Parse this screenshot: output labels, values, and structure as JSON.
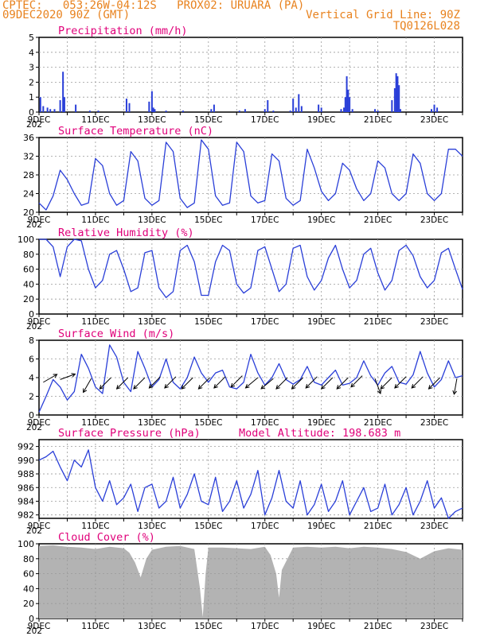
{
  "header": {
    "line1_left": "CPTEC:   053:26W-04:12S   PROX02: URUARA (PA)",
    "line2_left": "09DEC2020 90Z (GMT)",
    "line2_right": "Vertical Grid Line: 90Z",
    "line3_right": "TQ0126L028"
  },
  "colors": {
    "header": "#e8821e",
    "title": "#e0007a",
    "series": "#2a3fd8",
    "cloud": "#b3b3b3",
    "arrow": "#000000"
  },
  "x_axis": {
    "labels": [
      "9DEC",
      "11DEC",
      "13DEC",
      "15DEC",
      "17DEC",
      "19DEC",
      "21DEC",
      "23DEC"
    ],
    "label_days": [
      0,
      2,
      4,
      6,
      8,
      10,
      12,
      14
    ],
    "range_days": [
      0,
      15
    ],
    "year_stub": "202"
  },
  "chart_data": [
    {
      "id": "precip",
      "type": "bar",
      "title": "Precipitation (mm/h)",
      "ylim": [
        0,
        5
      ],
      "yticks": [
        0,
        1,
        2,
        3,
        4,
        5
      ],
      "x_days": [
        0.05,
        0.15,
        0.3,
        0.4,
        0.55,
        0.75,
        0.85,
        0.9,
        1.3,
        1.8,
        2.1,
        3.1,
        3.2,
        3.9,
        4.0,
        4.05,
        4.1,
        4.5,
        5.1,
        6.1,
        6.2,
        7.1,
        7.3,
        8.0,
        8.1,
        8.3,
        8.9,
        9.0,
        9.1,
        9.2,
        9.3,
        9.9,
        10.0,
        10.7,
        10.8,
        10.85,
        10.9,
        10.95,
        11.0,
        11.1,
        11.9,
        12.0,
        12.5,
        12.6,
        12.65,
        12.7,
        12.75,
        12.8,
        13.9,
        14.0,
        14.1
      ],
      "values": [
        1.0,
        0.4,
        0.3,
        0.2,
        0.2,
        0.8,
        2.7,
        1.0,
        0.5,
        0.1,
        0.1,
        0.9,
        0.6,
        0.7,
        1.4,
        0.3,
        0.2,
        0.1,
        0.1,
        0.2,
        0.5,
        0.1,
        0.2,
        0.2,
        0.8,
        0.1,
        0.1,
        0.9,
        0.3,
        1.2,
        0.4,
        0.5,
        0.3,
        0.2,
        0.3,
        1.0,
        2.4,
        1.5,
        1.0,
        0.2,
        0.2,
        0.1,
        0.8,
        1.6,
        2.6,
        2.4,
        1.8,
        0.2,
        0.2,
        0.5,
        0.3
      ]
    },
    {
      "id": "temp",
      "type": "line",
      "title": "Surface Temperature (nC)",
      "ylim": [
        20,
        36
      ],
      "yticks": [
        20,
        24,
        28,
        32,
        36
      ],
      "x": [
        0,
        0.25,
        0.5,
        0.75,
        1,
        1.25,
        1.5,
        1.75,
        2,
        2.25,
        2.5,
        2.75,
        3,
        3.25,
        3.5,
        3.75,
        4,
        4.25,
        4.5,
        4.75,
        5,
        5.25,
        5.5,
        5.75,
        6,
        6.25,
        6.5,
        6.75,
        7,
        7.25,
        7.5,
        7.75,
        8,
        8.25,
        8.5,
        8.75,
        9,
        9.25,
        9.5,
        9.75,
        10,
        10.25,
        10.5,
        10.75,
        11,
        11.25,
        11.5,
        11.75,
        12,
        12.25,
        12.5,
        12.75,
        13,
        13.25,
        13.5,
        13.75,
        14,
        14.25,
        14.5,
        14.75,
        15
      ],
      "values": [
        22,
        20.5,
        23.5,
        29,
        27,
        24,
        21.5,
        22,
        31.5,
        30,
        24,
        21.5,
        22.5,
        33,
        31,
        23,
        21.5,
        22.5,
        35,
        33,
        23,
        21,
        22,
        35.5,
        33.5,
        23.5,
        21.5,
        22,
        35,
        33,
        23.5,
        22,
        22.5,
        32.5,
        31,
        23,
        21.5,
        22.5,
        33.5,
        29.5,
        24.5,
        22.5,
        24,
        30.5,
        29,
        25,
        22.5,
        24,
        31,
        29.5,
        24,
        22.5,
        24,
        32.5,
        30.5,
        24,
        22.5,
        24,
        33.5,
        33.5,
        32
      ]
    },
    {
      "id": "rh",
      "type": "line",
      "title": "Relative Humidity (%)",
      "ylim": [
        0,
        100
      ],
      "yticks": [
        0,
        20,
        40,
        60,
        80,
        100
      ],
      "x": [
        0,
        0.25,
        0.5,
        0.75,
        1,
        1.25,
        1.5,
        1.75,
        2,
        2.25,
        2.5,
        2.75,
        3,
        3.25,
        3.5,
        3.75,
        4,
        4.25,
        4.5,
        4.75,
        5,
        5.25,
        5.5,
        5.75,
        6,
        6.25,
        6.5,
        6.75,
        7,
        7.25,
        7.5,
        7.75,
        8,
        8.25,
        8.5,
        8.75,
        9,
        9.25,
        9.5,
        9.75,
        10,
        10.25,
        10.5,
        10.75,
        11,
        11.25,
        11.5,
        11.75,
        12,
        12.25,
        12.5,
        12.75,
        13,
        13.25,
        13.5,
        13.75,
        14,
        14.25,
        14.5,
        14.75,
        15
      ],
      "values": [
        100,
        100,
        90,
        50,
        90,
        100,
        98,
        60,
        35,
        45,
        80,
        85,
        60,
        30,
        35,
        82,
        85,
        35,
        22,
        30,
        85,
        92,
        70,
        25,
        25,
        70,
        92,
        85,
        40,
        28,
        35,
        85,
        90,
        60,
        30,
        40,
        88,
        92,
        50,
        32,
        45,
        75,
        92,
        60,
        35,
        45,
        80,
        88,
        55,
        32,
        45,
        85,
        92,
        78,
        50,
        35,
        45,
        82,
        88,
        60,
        33
      ]
    },
    {
      "id": "wind",
      "type": "line",
      "title": "Surface Wind (m/s)",
      "ylim": [
        0,
        8
      ],
      "yticks": [
        0,
        2,
        4,
        6,
        8
      ],
      "x": [
        0,
        0.25,
        0.5,
        0.75,
        1,
        1.25,
        1.5,
        1.75,
        2,
        2.25,
        2.5,
        2.75,
        3,
        3.25,
        3.5,
        3.75,
        4,
        4.25,
        4.5,
        4.75,
        5,
        5.25,
        5.5,
        5.75,
        6,
        6.25,
        6.5,
        6.75,
        7,
        7.25,
        7.5,
        7.75,
        8,
        8.25,
        8.5,
        8.75,
        9,
        9.25,
        9.5,
        9.75,
        10,
        10.25,
        10.5,
        10.75,
        11,
        11.25,
        11.5,
        11.75,
        12,
        12.25,
        12.5,
        12.75,
        13,
        13.25,
        13.5,
        13.75,
        14,
        14.25,
        14.5,
        14.75,
        15
      ],
      "values": [
        0.3,
        2,
        3.8,
        3,
        1.6,
        2.5,
        6.5,
        5,
        3,
        2.3,
        7.5,
        6.2,
        3.5,
        2.5,
        6.8,
        5,
        3,
        3.8,
        6,
        3.5,
        2.8,
        4,
        6.2,
        4.5,
        3.5,
        4.5,
        4.8,
        3,
        2.8,
        3.5,
        6.5,
        4.5,
        3.2,
        4,
        5.5,
        3.8,
        3.3,
        3.8,
        5.2,
        3.5,
        3.2,
        4,
        4.8,
        3.2,
        3.4,
        4,
        5.8,
        4.2,
        3.2,
        4.5,
        5.2,
        3.5,
        3.3,
        4.3,
        6.8,
        4.5,
        3,
        3.8,
        5.8,
        4,
        4.2
      ],
      "vector_days": [
        0.15,
        0.75,
        1.85,
        2.55,
        3.15,
        3.75,
        4.3,
        4.85,
        5.45,
        6.05,
        6.6,
        7.2,
        7.75,
        8.3,
        8.8,
        9.35,
        9.85,
        10.4,
        10.95,
        11.45,
        11.9,
        12.5,
        13.0,
        13.6,
        14.2,
        14.8
      ],
      "vector_speed": [
        3.5,
        3.8,
        3.9,
        4.0,
        4.0,
        4.0,
        4.1,
        4.1,
        4.0,
        4.0,
        4.1,
        4.2,
        4.0,
        3.9,
        4.0,
        4.0,
        4.1,
        4.0,
        4.0,
        4.2,
        3.9,
        4.0,
        4.1,
        4.1,
        4.0,
        3.9
      ],
      "vector_dir_deg": [
        210,
        200,
        60,
        45,
        45,
        45,
        45,
        45,
        45,
        45,
        45,
        45,
        40,
        40,
        45,
        45,
        45,
        45,
        45,
        45,
        110,
        45,
        45,
        45,
        45,
        80
      ]
    },
    {
      "id": "pres",
      "type": "line",
      "title": "Surface Pressure (hPa)",
      "annotation": "Model Altitude: 198.683 m",
      "ylim": [
        981.5,
        993
      ],
      "yticks": [
        982,
        984,
        986,
        988,
        990,
        992
      ],
      "x": [
        0,
        0.25,
        0.5,
        0.75,
        1,
        1.25,
        1.5,
        1.75,
        2,
        2.25,
        2.5,
        2.75,
        3,
        3.25,
        3.5,
        3.75,
        4,
        4.25,
        4.5,
        4.75,
        5,
        5.25,
        5.5,
        5.75,
        6,
        6.25,
        6.5,
        6.75,
        7,
        7.25,
        7.5,
        7.75,
        8,
        8.25,
        8.5,
        8.75,
        9,
        9.25,
        9.5,
        9.75,
        10,
        10.25,
        10.5,
        10.75,
        11,
        11.25,
        11.5,
        11.75,
        12,
        12.25,
        12.5,
        12.75,
        13,
        13.25,
        13.5,
        13.75,
        14,
        14.25,
        14.5,
        14.75,
        15
      ],
      "values": [
        990,
        990.5,
        991.3,
        989,
        987,
        990,
        989,
        991.5,
        986,
        984,
        987,
        983.5,
        984.5,
        986.5,
        982.5,
        986,
        986.5,
        983,
        984,
        987.5,
        983,
        985,
        988,
        984,
        983.5,
        987.5,
        982.5,
        984,
        987,
        983,
        985,
        988.5,
        982,
        984.5,
        988.5,
        984,
        983,
        987,
        982,
        983.5,
        986.5,
        982.5,
        984,
        987,
        982,
        984,
        986,
        982.5,
        983,
        986.5,
        982,
        983.5,
        986,
        982,
        984,
        987,
        983,
        984.5,
        981.5,
        982.5,
        983
      ]
    },
    {
      "id": "cloud",
      "type": "area",
      "title": "Cloud Cover (%)",
      "ylim": [
        0,
        100
      ],
      "yticks": [
        0,
        20,
        40,
        60,
        80,
        100
      ],
      "x": [
        0,
        0.5,
        1,
        1.5,
        2,
        2.5,
        3,
        3.2,
        3.4,
        3.6,
        3.8,
        4,
        4.5,
        5,
        5.5,
        5.7,
        5.8,
        5.9,
        6,
        6.5,
        7,
        7.5,
        8,
        8.2,
        8.4,
        8.5,
        8.6,
        9,
        9.5,
        10,
        10.5,
        11,
        11.5,
        12,
        12.5,
        13,
        13.5,
        14,
        14.5,
        15
      ],
      "values": [
        97,
        98,
        96,
        95,
        93,
        96,
        94,
        88,
        75,
        55,
        80,
        92,
        96,
        97,
        93,
        40,
        2,
        60,
        95,
        95,
        94,
        93,
        96,
        85,
        60,
        28,
        65,
        95,
        96,
        95,
        96,
        94,
        96,
        95,
        93,
        89,
        80,
        90,
        94,
        92
      ]
    }
  ]
}
